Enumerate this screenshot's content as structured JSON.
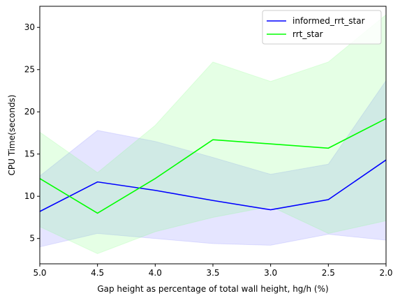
{
  "chart_data": {
    "type": "line",
    "xlabel": "Gap height as percentage of total wall height, hg/h (%)",
    "ylabel": "CPU Time(seconds)",
    "xlim": [
      5.0,
      2.0
    ],
    "ylim": [
      2.0,
      32.5
    ],
    "x_axis_inverted": true,
    "x_ticks": [
      5.0,
      4.5,
      4.0,
      3.5,
      3.0,
      2.5,
      2.0
    ],
    "x_tick_labels": [
      "5.0",
      "4.5",
      "4.0",
      "3.5",
      "3.0",
      "2.5",
      "2.0"
    ],
    "y_ticks": [
      5,
      10,
      15,
      20,
      25,
      30
    ],
    "y_tick_labels": [
      "5",
      "10",
      "15",
      "20",
      "25",
      "30"
    ],
    "grid": false,
    "legend_position": "top-right",
    "x": [
      5.0,
      4.5,
      4.0,
      3.5,
      3.0,
      2.5,
      2.0
    ],
    "series": [
      {
        "name": "informed_rrt_star",
        "color": "#0000ff",
        "band_color": "#7f7fff",
        "values": [
          8.2,
          11.7,
          10.7,
          9.5,
          8.4,
          9.6,
          14.3
        ],
        "band_upper": [
          12.4,
          17.8,
          16.5,
          14.6,
          12.6,
          13.8,
          23.7
        ],
        "band_lower": [
          4.0,
          5.6,
          5.0,
          4.4,
          4.2,
          5.5,
          4.8
        ]
      },
      {
        "name": "rrt_star",
        "color": "#00ff00",
        "band_color": "#7fff7f",
        "values": [
          12.1,
          8.0,
          12.1,
          16.7,
          16.2,
          15.7,
          19.2
        ],
        "band_upper": [
          17.6,
          12.8,
          18.4,
          25.9,
          23.6,
          25.9,
          31.5
        ],
        "band_lower": [
          6.4,
          3.2,
          5.8,
          7.5,
          8.8,
          5.6,
          7.1
        ]
      }
    ]
  }
}
